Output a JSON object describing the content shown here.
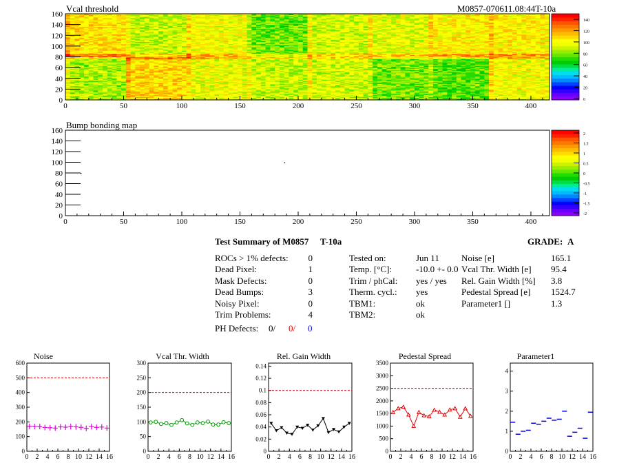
{
  "header": {
    "vcal_title": "Vcal threshold",
    "module_id": "M0857-070611.08:44T-10a",
    "bump_title": "Bump bonding map"
  },
  "colors": {
    "threshold_palette": [
      "#8b00ff",
      "#6600ff",
      "#3300ff",
      "#0000ff",
      "#0044ff",
      "#0088ff",
      "#00bbff",
      "#00ddee",
      "#00ee99",
      "#00dd44",
      "#00cc00",
      "#22dd00",
      "#66e600",
      "#99ee00",
      "#ccf200",
      "#eeff00",
      "#ffff00",
      "#ffdd00",
      "#ffbb00",
      "#ff9900",
      "#ff7700",
      "#ff5500",
      "#ff2200",
      "#ff0000"
    ],
    "magenta": "#e000e0",
    "green": "#009900",
    "black": "#000000",
    "red": "#e00000",
    "blue": "#0000dd",
    "reference_line": "#cc0000"
  },
  "summary": {
    "title": "Test Summary of M0857",
    "temp_label": "T-10a",
    "grade_label": "GRADE:",
    "grade_value": "A",
    "defects": [
      {
        "label": "ROCs > 1% defects:",
        "value": "0"
      },
      {
        "label": "Dead Pixel:",
        "value": "1"
      },
      {
        "label": "Mask Defects:",
        "value": "0"
      },
      {
        "label": "Dead Bumps:",
        "value": "3"
      },
      {
        "label": "Noisy Pixel:",
        "value": "0"
      },
      {
        "label": "Trim Problems:",
        "value": "4"
      }
    ],
    "ph_label": "PH Defects:",
    "ph_values": [
      "0/",
      "0/",
      "0"
    ],
    "conditions": [
      {
        "label": "Tested on:",
        "value": "Jun 11"
      },
      {
        "label": "Temp. [°C]:",
        "value": "-10.0 +- 0.0"
      },
      {
        "label": "Trim / phCal:",
        "value": "yes / yes"
      },
      {
        "label": "Therm. cycl.:",
        "value": "yes"
      },
      {
        "label": "TBM1:",
        "value": "ok"
      },
      {
        "label": "TBM2:",
        "value": "ok"
      }
    ],
    "results": [
      {
        "label": "Noise [e]",
        "value": "165.1"
      },
      {
        "label": "Vcal Thr. Width [e]",
        "value": "95.4"
      },
      {
        "label": "Rel. Gain Width [%]",
        "value": "3.8"
      },
      {
        "label": "Pedestal Spread [e]",
        "value": "1524.7"
      },
      {
        "label": "Parameter1 []",
        "value": "1.3"
      }
    ]
  },
  "chart_data": [
    {
      "type": "heatmap",
      "title": "Vcal threshold",
      "x_range": [
        0,
        416
      ],
      "y_range": [
        0,
        160
      ],
      "x_ticks": [
        0,
        50,
        100,
        150,
        200,
        250,
        300,
        350,
        400
      ],
      "y_ticks": [
        0,
        20,
        40,
        60,
        80,
        100,
        120,
        140,
        160
      ],
      "z_range": [
        0,
        145
      ],
      "z_ticks": [
        0,
        20,
        40,
        60,
        80,
        100,
        120,
        140
      ],
      "roc_mean_thresholds": {
        "top_row": [
          104,
          88,
          96,
          76,
          90,
          92,
          100,
          100
        ],
        "bottom_row": [
          84,
          106,
          94,
          88,
          90,
          78,
          74,
          96
        ]
      }
    },
    {
      "type": "heatmap",
      "title": "Bump bonding map",
      "x_range": [
        0,
        416
      ],
      "y_range": [
        0,
        160
      ],
      "x_ticks": [
        0,
        50,
        100,
        150,
        200,
        250,
        300,
        350,
        400
      ],
      "y_ticks": [
        0,
        20,
        40,
        60,
        80,
        100,
        120,
        140,
        160
      ],
      "z_range": [
        -2,
        2
      ],
      "z_ticks": [
        "2",
        "1.5",
        "1",
        "0.5",
        "0",
        "-0.5",
        "-1",
        "-1.5",
        "-2"
      ],
      "points": [
        [
          188,
          100
        ],
        [
          13,
          80
        ]
      ]
    },
    {
      "type": "scatter",
      "title": "Noise",
      "x_ticks": [
        "0",
        "2",
        "4",
        "6",
        "8",
        "10",
        "12",
        "14",
        "16"
      ],
      "y_ticks": [
        "0",
        "100",
        "200",
        "300",
        "400",
        "500",
        "600"
      ],
      "ylim": [
        0,
        600
      ],
      "reference": 500,
      "color_key": "magenta",
      "marker": "plus",
      "values": [
        170,
        168,
        168,
        162,
        160,
        158,
        166,
        164,
        168,
        166,
        163,
        156,
        168,
        163,
        165,
        158
      ]
    },
    {
      "type": "line",
      "title": "Vcal Thr. Width",
      "x_ticks": [
        "0",
        "2",
        "4",
        "6",
        "8",
        "10",
        "12",
        "14",
        "16"
      ],
      "y_ticks": [
        "0",
        "50",
        "100",
        "150",
        "200",
        "250",
        "300"
      ],
      "ylim": [
        0,
        300
      ],
      "reference": 200,
      "color_key": "green",
      "marker": "circle",
      "values": [
        98,
        100,
        93,
        96,
        90,
        98,
        106,
        95,
        90,
        98,
        96,
        101,
        91,
        91,
        99,
        96
      ]
    },
    {
      "type": "line",
      "title": "Rel. Gain Width",
      "x_ticks": [
        "0",
        "2",
        "4",
        "6",
        "8",
        "10",
        "12",
        "14",
        "16"
      ],
      "y_ticks": [
        "0",
        "0.02",
        "0.04",
        "0.06",
        "0.08",
        "0.1",
        "0.12",
        "0.14"
      ],
      "ylim": [
        0,
        0.145
      ],
      "reference": 0.1,
      "color_key": "black",
      "marker": "triangle-down",
      "values": [
        0.046,
        0.034,
        0.039,
        0.03,
        0.028,
        0.04,
        0.038,
        0.043,
        0.035,
        0.042,
        0.054,
        0.031,
        0.036,
        0.032,
        0.04,
        0.046
      ]
    },
    {
      "type": "line",
      "title": "Pedestal Spread",
      "x_ticks": [
        "0",
        "2",
        "4",
        "6",
        "8",
        "10",
        "12",
        "14",
        "16"
      ],
      "y_ticks": [
        "0",
        "500",
        "1000",
        "1500",
        "2000",
        "2500",
        "3000",
        "3500"
      ],
      "ylim": [
        0,
        3500
      ],
      "reference": 2500,
      "color_key": "red",
      "marker": "triangle-up",
      "values": [
        1550,
        1700,
        1760,
        1450,
        1000,
        1550,
        1420,
        1380,
        1640,
        1560,
        1450,
        1650,
        1700,
        1360,
        1700,
        1400
      ]
    },
    {
      "type": "scatter",
      "title": "Parameter1",
      "x_ticks": [
        "0",
        "2",
        "4",
        "6",
        "8",
        "10",
        "12",
        "14",
        "16"
      ],
      "y_ticks": [
        "0",
        "1",
        "2",
        "3",
        "4"
      ],
      "ylim": [
        0,
        4.4
      ],
      "color_key": "blue",
      "marker": "hbar",
      "values": [
        1.45,
        0.85,
        1.0,
        1.05,
        1.4,
        1.35,
        1.5,
        1.65,
        1.55,
        1.6,
        2.0,
        0.75,
        0.95,
        1.15,
        0.65,
        1.95
      ]
    }
  ]
}
